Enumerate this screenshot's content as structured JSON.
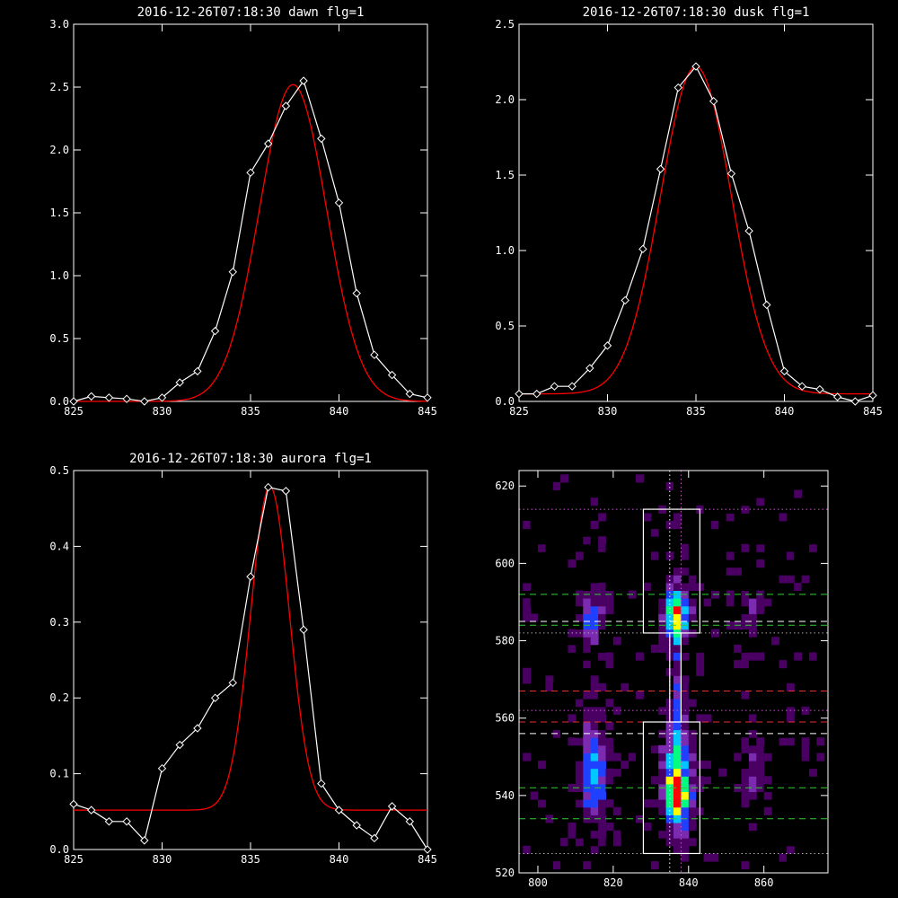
{
  "chart_data": [
    {
      "type": "line",
      "title": "2016-12-26T07:18:30 dawn flg=1",
      "xlim": [
        825,
        845
      ],
      "ylim": [
        0,
        3.0
      ],
      "xticks": [
        "825",
        "830",
        "835",
        "840",
        "845"
      ],
      "yticks": [
        "0.0",
        "0.5",
        "1.0",
        "1.5",
        "2.0",
        "2.5",
        "3.0"
      ],
      "data_color": "#ffffff",
      "fit_color": "#ff0000",
      "data": {
        "x": [
          825,
          826,
          827,
          828,
          829,
          830,
          831,
          832,
          833,
          834,
          835,
          836,
          837,
          838,
          839,
          840,
          841,
          842,
          843,
          844,
          845
        ],
        "y": [
          0.0,
          0.04,
          0.03,
          0.02,
          0.0,
          0.03,
          0.15,
          0.24,
          0.56,
          1.03,
          1.82,
          2.05,
          2.35,
          2.55,
          2.09,
          1.58,
          0.86,
          0.37,
          0.21,
          0.06,
          0.03
        ]
      },
      "fit": {
        "model": "gaussian",
        "center": 837.4,
        "sigma": 1.9,
        "amplitude": 2.52,
        "baseline": 0.0
      }
    },
    {
      "type": "line",
      "title": "2016-12-26T07:18:30 dusk flg=1",
      "xlim": [
        825,
        845
      ],
      "ylim": [
        0,
        2.5
      ],
      "xticks": [
        "825",
        "830",
        "835",
        "840",
        "845"
      ],
      "yticks": [
        "0.0",
        "0.5",
        "1.0",
        "1.5",
        "2.0",
        "2.5"
      ],
      "data_color": "#ffffff",
      "fit_color": "#ff0000",
      "data": {
        "x": [
          825,
          826,
          827,
          828,
          829,
          830,
          831,
          832,
          833,
          834,
          835,
          836,
          837,
          838,
          839,
          840,
          841,
          842,
          843,
          844,
          845
        ],
        "y": [
          0.05,
          0.05,
          0.1,
          0.1,
          0.22,
          0.37,
          0.67,
          1.01,
          1.54,
          2.08,
          2.22,
          1.99,
          1.51,
          1.13,
          0.64,
          0.2,
          0.1,
          0.08,
          0.03,
          -0.02,
          0.04
        ]
      },
      "fit": {
        "model": "gaussian",
        "center": 835.0,
        "sigma": 2.0,
        "amplitude": 2.17,
        "baseline": 0.05
      }
    },
    {
      "type": "line",
      "title": "2016-12-26T07:18:30 aurora flg=1",
      "xlim": [
        825,
        845
      ],
      "ylim": [
        0,
        0.5
      ],
      "xticks": [
        "825",
        "830",
        "835",
        "840",
        "845"
      ],
      "yticks": [
        "0.0",
        "0.1",
        "0.2",
        "0.3",
        "0.4",
        "0.5"
      ],
      "data_color": "#ffffff",
      "fit_color": "#ff0000",
      "data": {
        "x": [
          825,
          826,
          827,
          828,
          829,
          830,
          831,
          832,
          833,
          834,
          835,
          836,
          837,
          838,
          839,
          840,
          841,
          842,
          843,
          844,
          845
        ],
        "y": [
          0.06,
          0.052,
          0.037,
          0.037,
          0.012,
          0.107,
          0.138,
          0.16,
          0.2,
          0.22,
          0.36,
          0.478,
          0.473,
          0.29,
          0.087,
          0.052,
          0.032,
          0.015,
          0.057,
          0.037,
          0.0
        ]
      },
      "fit": {
        "model": "gaussian",
        "center": 836.1,
        "sigma": 1.1,
        "amplitude": 0.427,
        "baseline": 0.052
      }
    },
    {
      "type": "heatmap",
      "title": "",
      "xlim": [
        795,
        877
      ],
      "ylim": [
        520,
        624
      ],
      "xticks": [
        "800",
        "820",
        "840",
        "860"
      ],
      "yticks": [
        "520",
        "540",
        "560",
        "580",
        "600",
        "620"
      ],
      "colormap": [
        "#000000",
        "#4a0063",
        "#7a2bb0",
        "#2040ff",
        "#00c8ff",
        "#00ff80",
        "#ffff00",
        "#ff0000"
      ],
      "intensity_sources": [
        {
          "x": 814,
          "y": 545,
          "sx": 2.2,
          "sy": 9,
          "amp": 0.55
        },
        {
          "x": 813,
          "y": 585,
          "sx": 2.2,
          "sy": 5,
          "amp": 0.4
        },
        {
          "x": 836,
          "y": 538,
          "sx": 2.4,
          "sy": 5,
          "amp": 0.9
        },
        {
          "x": 836,
          "y": 550,
          "sx": 2.4,
          "sy": 7,
          "amp": 0.55
        },
        {
          "x": 836,
          "y": 586,
          "sx": 2.4,
          "sy": 5,
          "amp": 0.75
        },
        {
          "x": 836,
          "y": 570,
          "sx": 1.2,
          "sy": 10,
          "amp": 0.22
        },
        {
          "x": 856,
          "y": 546,
          "sx": 2.0,
          "sy": 7,
          "amp": 0.2
        },
        {
          "x": 856,
          "y": 587,
          "sx": 1.8,
          "sy": 3,
          "amp": 0.28
        }
      ],
      "boxes": [
        {
          "x0": 828,
          "x1": 843,
          "y0": 525,
          "y1": 559,
          "color": "#ffffff"
        },
        {
          "x0": 828,
          "x1": 843,
          "y0": 582,
          "y1": 614,
          "color": "#ffffff"
        },
        {
          "x0": 835,
          "x1": 838,
          "y0": 559,
          "y1": 582,
          "color": "#ffffff"
        }
      ],
      "hlines": [
        {
          "y": 614,
          "color": "#cc55cc",
          "style": "dotted"
        },
        {
          "y": 592,
          "color": "#33cc33",
          "style": "dashed"
        },
        {
          "y": 585,
          "color": "#ffffff",
          "style": "dashed"
        },
        {
          "y": 584,
          "color": "#33cc33",
          "style": "dashed"
        },
        {
          "y": 582,
          "color": "#aaaaaa",
          "style": "dotted"
        },
        {
          "y": 567,
          "color": "#dd3333",
          "style": "dashed"
        },
        {
          "y": 562,
          "color": "#cc55cc",
          "style": "dotted"
        },
        {
          "y": 559,
          "color": "#dd3333",
          "style": "dashed"
        },
        {
          "y": 556,
          "color": "#ffffff",
          "style": "dashed"
        },
        {
          "y": 542,
          "color": "#33cc33",
          "style": "dashed"
        },
        {
          "y": 534,
          "color": "#33cc33",
          "style": "dashed"
        },
        {
          "y": 525,
          "color": "#aaaaaa",
          "style": "dotted"
        }
      ],
      "vlines": [
        {
          "x": 835,
          "color": "#ffffff",
          "style": "dotted"
        },
        {
          "x": 838,
          "color": "#cc55cc",
          "style": "dotted"
        }
      ]
    }
  ]
}
